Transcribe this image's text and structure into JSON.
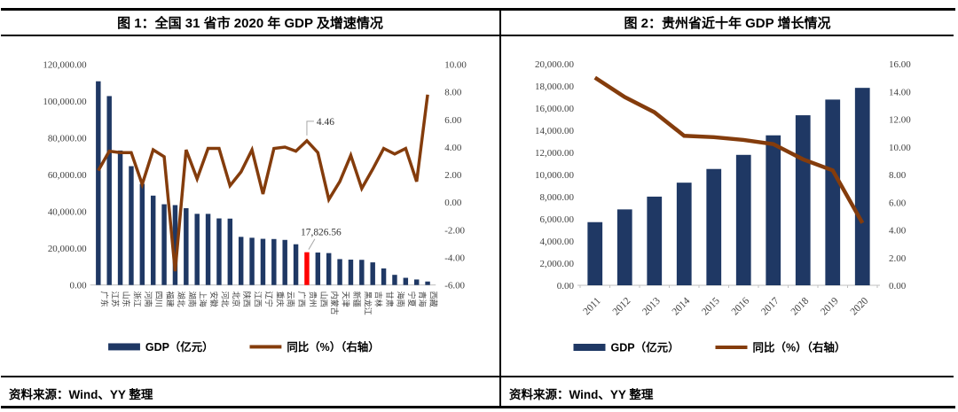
{
  "colors": {
    "bar": "#1f3864",
    "line": "#843c0c",
    "highlight": "#ff0000",
    "axis_text": "#3f3f3f",
    "axis_line": "#bfbfbf",
    "annotation_line": "#a6a6a6",
    "border": "#000000",
    "background": "#ffffff"
  },
  "panels": [
    {
      "title": "图 1：全国 31 省市 2020 年 GDP 及增速情况",
      "source": "资料来源：Wind、YY 整理",
      "chart_data": {
        "type": "bar",
        "subtype": "combo-bar-line-dual-axis",
        "categories": [
          "广东",
          "江苏",
          "山东",
          "浙江",
          "河南",
          "四川",
          "福建",
          "湖北",
          "湖南",
          "上海",
          "安徽",
          "河北",
          "北京",
          "陕西",
          "江西",
          "辽宁",
          "重庆",
          "云南",
          "广西",
          "贵州",
          "山西",
          "内蒙古",
          "天津",
          "新疆",
          "黑龙江",
          "吉林",
          "甘肃",
          "海南",
          "宁夏",
          "青海",
          "西藏"
        ],
        "series": [
          {
            "name": "GDP（亿元）",
            "type": "bar",
            "axis": "left",
            "values": [
              110760.94,
              102718.98,
              73129.0,
              64613.34,
              54997.07,
              48598.76,
              43903.89,
              43443.46,
              41781.49,
              38700.58,
              38680.63,
              36206.89,
              36102.55,
              26181.86,
              25691.5,
              25115.0,
              25002.79,
              24521.9,
              22156.69,
              17826.56,
              17651.93,
              17359.82,
              14083.73,
              13797.58,
              13698.5,
              12311.32,
              9016.7,
              5532.39,
              3920.55,
              3005.92,
              1902.74
            ]
          },
          {
            "name": "同比（%）（右轴）",
            "type": "line",
            "axis": "right",
            "values": [
              2.3,
              3.7,
              3.6,
              3.6,
              1.3,
              3.8,
              3.3,
              -5.0,
              3.8,
              1.7,
              3.9,
              3.9,
              1.2,
              2.2,
              3.8,
              0.6,
              3.9,
              4.0,
              3.7,
              4.46,
              3.6,
              0.2,
              1.5,
              3.4,
              1.0,
              2.4,
              3.9,
              3.5,
              3.9,
              1.5,
              7.8
            ]
          }
        ],
        "left_axis": {
          "min": 0,
          "max": 120000,
          "step": 20000,
          "decimals": 2
        },
        "right_axis": {
          "min": -6,
          "max": 10,
          "step": 2,
          "decimals": 2
        },
        "highlight": {
          "category": "贵州"
        },
        "xlabel_style": "vertical",
        "grid": false,
        "annotations": [
          {
            "text": "4.46",
            "category": "贵州",
            "series": "line",
            "kind": "elbow"
          },
          {
            "text": "17,826.56",
            "category": "贵州",
            "series": "bar",
            "kind": "diagonal"
          }
        ],
        "legend": [
          {
            "label": "GDP（亿元）",
            "swatch": "bar"
          },
          {
            "label": "同比（%）（右轴）",
            "swatch": "line"
          }
        ],
        "legend_position": "bottom"
      }
    },
    {
      "title": "图 2：贵州省近十年 GDP 增长情况",
      "source": "资料来源：Wind、YY 整理",
      "chart_data": {
        "type": "bar",
        "subtype": "combo-bar-line-dual-axis",
        "categories": [
          "2011",
          "2012",
          "2013",
          "2014",
          "2015",
          "2016",
          "2017",
          "2018",
          "2019",
          "2020"
        ],
        "series": [
          {
            "name": "GDP（亿元）",
            "type": "bar",
            "axis": "left",
            "values": [
              5701.84,
              6852.2,
              8006.79,
              9266.39,
              10502.56,
              11776.73,
              13540.83,
              15353.21,
              16769.34,
              17826.56
            ]
          },
          {
            "name": "同比（%）（右轴）",
            "type": "line",
            "axis": "right",
            "values": [
              15.0,
              13.6,
              12.5,
              10.8,
              10.7,
              10.5,
              10.2,
              9.1,
              8.3,
              4.5
            ]
          }
        ],
        "left_axis": {
          "min": 0,
          "max": 20000,
          "step": 2000,
          "decimals": 2
        },
        "right_axis": {
          "min": 0,
          "max": 16,
          "step": 2,
          "decimals": 2
        },
        "xlabel_style": "angled",
        "grid": false,
        "annotations": [],
        "legend": [
          {
            "label": "GDP（亿元）",
            "swatch": "bar"
          },
          {
            "label": "同比（%）（右轴）",
            "swatch": "line"
          }
        ],
        "legend_position": "bottom"
      }
    }
  ]
}
